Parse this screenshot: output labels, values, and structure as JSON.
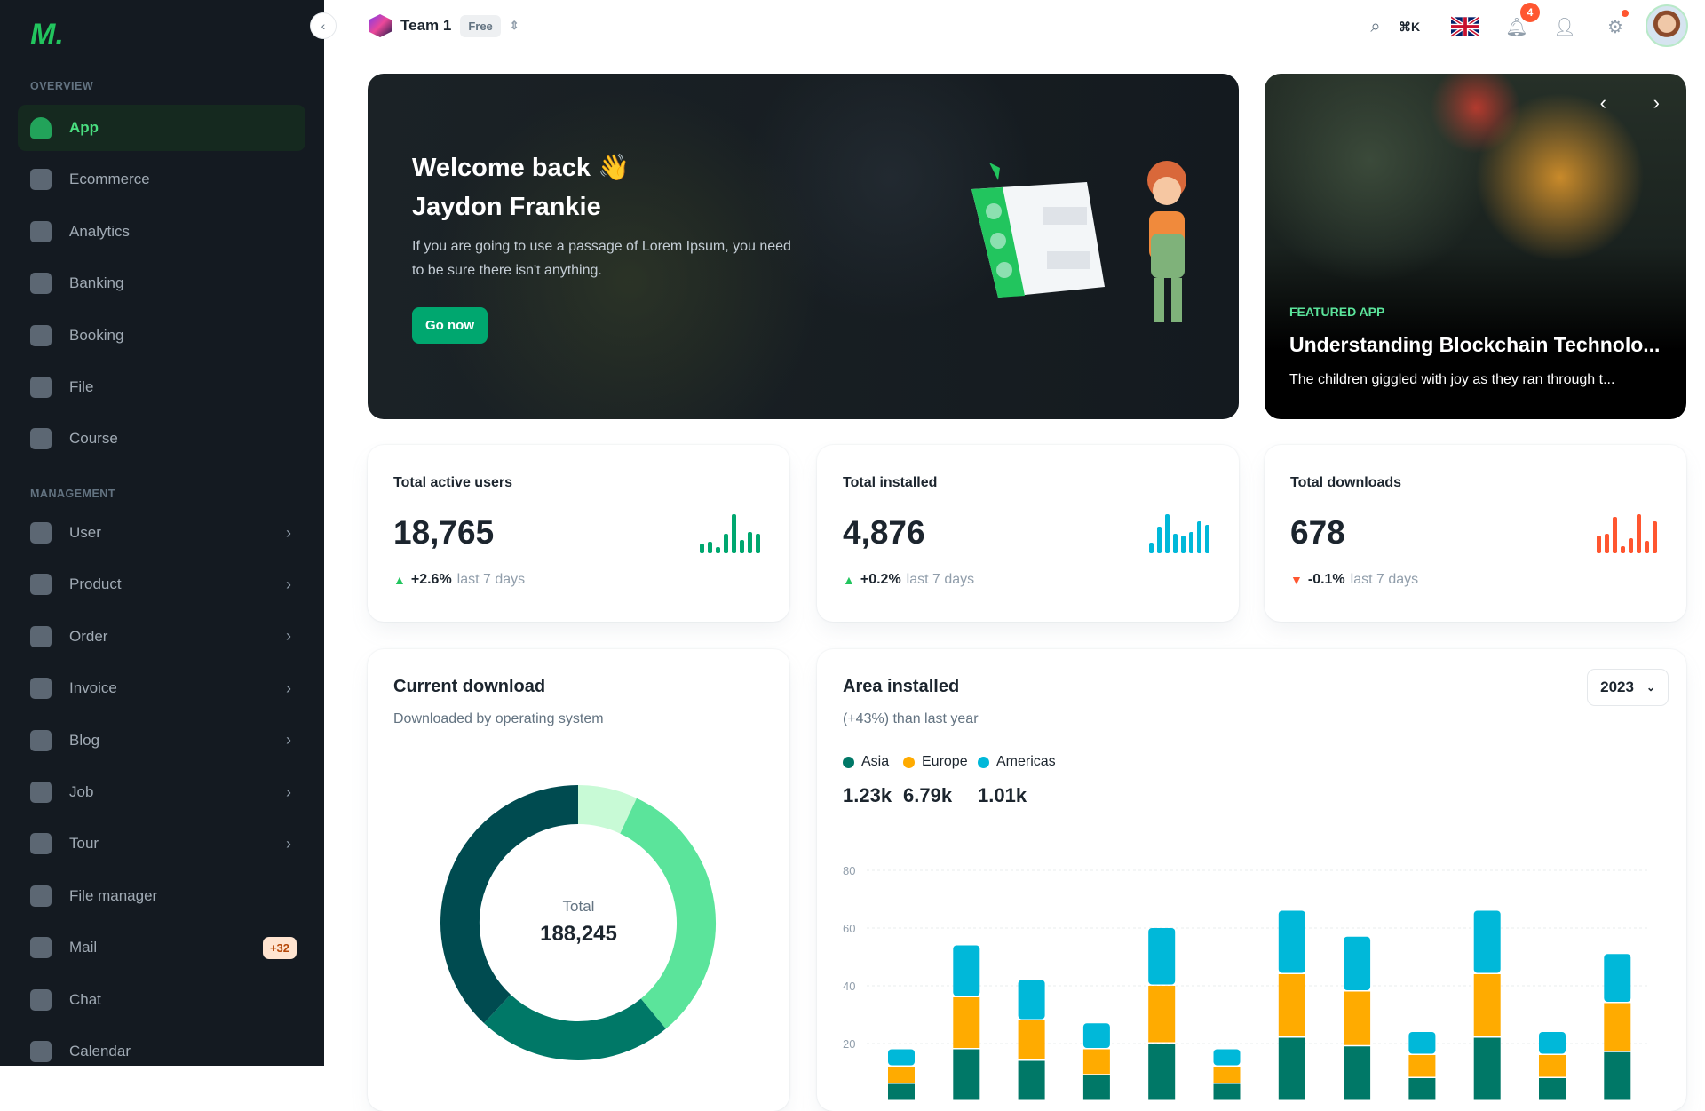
{
  "sidebar": {
    "logo": "M.",
    "sections": [
      {
        "title": "OVERVIEW"
      },
      {
        "title": "MANAGEMENT"
      }
    ],
    "items": [
      {
        "label": "App",
        "active": true
      },
      {
        "label": "Ecommerce"
      },
      {
        "label": "Analytics"
      },
      {
        "label": "Banking"
      },
      {
        "label": "Booking"
      },
      {
        "label": "File"
      },
      {
        "label": "Course"
      },
      {
        "label": "User",
        "chevron": true
      },
      {
        "label": "Product",
        "chevron": true
      },
      {
        "label": "Order",
        "chevron": true
      },
      {
        "label": "Invoice",
        "chevron": true
      },
      {
        "label": "Blog",
        "chevron": true
      },
      {
        "label": "Job",
        "chevron": true
      },
      {
        "label": "Tour",
        "chevron": true
      },
      {
        "label": "File manager"
      },
      {
        "label": "Mail",
        "badge": "+32"
      },
      {
        "label": "Chat"
      },
      {
        "label": "Calendar"
      }
    ]
  },
  "header": {
    "team": "Team 1",
    "plan": "Free",
    "shortcut": "⌘K",
    "notifications": "4"
  },
  "hero": {
    "title_line1": "Welcome back 👋",
    "title_line2": "Jaydon Frankie",
    "text": "If you are going to use a passage of Lorem Ipsum, you need to be sure there isn't anything.",
    "button": "Go now"
  },
  "featured": {
    "tag": "FEATURED APP",
    "title": "Understanding Blockchain Technolo...",
    "text": "The children giggled with joy as they ran through t..."
  },
  "stats": [
    {
      "title": "Total active users",
      "value": "18,765",
      "change": "+2.6%",
      "period": "last 7 days",
      "trend": "up",
      "color": "#00a76f",
      "spark": [
        30,
        35,
        20,
        60,
        120,
        40,
        65,
        60
      ]
    },
    {
      "title": "Total installed",
      "value": "4,876",
      "change": "+0.2%",
      "period": "last 7 days",
      "trend": "up",
      "color": "#00b8d9",
      "spark": [
        30,
        75,
        110,
        55,
        50,
        60,
        90,
        80
      ]
    },
    {
      "title": "Total downloads",
      "value": "678",
      "change": "-0.1%",
      "period": "last 7 days",
      "trend": "down",
      "color": "#ff5630",
      "spark": [
        65,
        70,
        130,
        25,
        55,
        140,
        45,
        115
      ]
    }
  ],
  "chart_data": [
    {
      "type": "pie",
      "title": "Current download",
      "subtitle": "Downloaded by operating system",
      "center_label": "Total",
      "center_value": "188,245",
      "values": [
        7,
        32,
        23,
        38
      ],
      "colors": [
        "#c8fad6",
        "#5be49b",
        "#007867",
        "#004b50"
      ]
    },
    {
      "type": "bar",
      "stacked": true,
      "title": "Area installed",
      "subtitle": "(+43%) than last year",
      "selector": "2023",
      "ylim": [
        0,
        80
      ],
      "yticks": [
        20,
        40,
        60,
        80
      ],
      "grid": true,
      "series": [
        {
          "name": "Asia",
          "total": "1.23k",
          "color": "#007867",
          "values": [
            6,
            18,
            14,
            9,
            20,
            6,
            22,
            19,
            8,
            22,
            8,
            17
          ]
        },
        {
          "name": "Europe",
          "total": "6.79k",
          "color": "#ffab00",
          "values": [
            6,
            18,
            14,
            9,
            20,
            6,
            22,
            19,
            8,
            22,
            8,
            17
          ]
        },
        {
          "name": "Americas",
          "total": "1.01k",
          "color": "#00b8d9",
          "values": [
            6,
            18,
            14,
            9,
            20,
            6,
            22,
            19,
            8,
            22,
            8,
            17
          ]
        }
      ]
    }
  ]
}
